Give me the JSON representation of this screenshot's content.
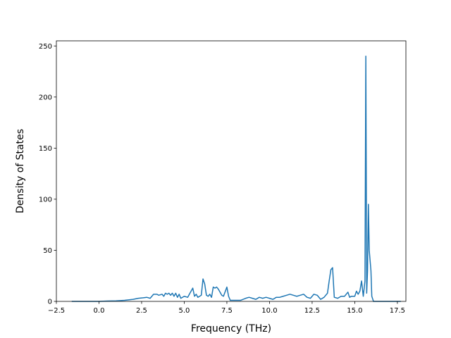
{
  "chart_data": {
    "type": "line",
    "title": "",
    "xlabel": "Frequency (THz)",
    "ylabel": "Density of States",
    "xlim": [
      -2.5,
      18.0
    ],
    "ylim": [
      0,
      255
    ],
    "grid": false,
    "legend": "none",
    "xticks": [
      "−2.5",
      "0.0",
      "2.5",
      "5.0",
      "7.5",
      "10.0",
      "12.5",
      "15.0",
      "17.5"
    ],
    "xtick_values": [
      -2.5,
      0.0,
      2.5,
      5.0,
      7.5,
      10.0,
      12.5,
      15.0,
      17.5
    ],
    "yticks": [
      "0",
      "50",
      "100",
      "150",
      "200",
      "250"
    ],
    "ytick_values": [
      0,
      50,
      100,
      150,
      200,
      250
    ],
    "series": [
      {
        "color": "#1f77b4",
        "x": [
          -1.6,
          -1.0,
          -0.5,
          0.0,
          0.5,
          1.0,
          1.5,
          2.0,
          2.3,
          2.6,
          2.8,
          3.0,
          3.2,
          3.4,
          3.5,
          3.7,
          3.8,
          3.9,
          4.0,
          4.1,
          4.2,
          4.3,
          4.4,
          4.5,
          4.6,
          4.7,
          4.8,
          5.0,
          5.2,
          5.4,
          5.5,
          5.6,
          5.7,
          5.8,
          5.9,
          6.0,
          6.1,
          6.2,
          6.3,
          6.4,
          6.5,
          6.6,
          6.7,
          6.8,
          6.9,
          7.0,
          7.2,
          7.3,
          7.5,
          7.6,
          7.7,
          7.8,
          8.0,
          8.3,
          8.6,
          8.8,
          9.0,
          9.2,
          9.4,
          9.6,
          9.8,
          10.0,
          10.2,
          10.4,
          10.6,
          10.8,
          11.0,
          11.2,
          11.4,
          11.6,
          11.8,
          12.0,
          12.2,
          12.4,
          12.6,
          12.8,
          13.0,
          13.2,
          13.4,
          13.5,
          13.6,
          13.7,
          13.8,
          14.0,
          14.2,
          14.4,
          14.6,
          14.7,
          14.8,
          15.0,
          15.1,
          15.2,
          15.3,
          15.4,
          15.5,
          15.6,
          15.65,
          15.7,
          15.75,
          15.8,
          15.85,
          15.9,
          15.95,
          16.0,
          16.1,
          16.2,
          16.3,
          17.0,
          17.7
        ],
        "y": [
          0,
          0,
          0,
          0,
          0.3,
          0.5,
          1,
          2,
          3,
          3.5,
          4,
          3,
          7,
          7,
          6,
          7,
          5,
          8,
          7,
          8,
          6,
          8,
          5,
          8,
          4,
          7,
          3,
          5,
          4,
          10,
          13,
          5,
          7,
          4,
          5,
          6,
          22,
          17,
          6,
          5,
          7,
          4,
          14,
          13,
          14,
          12,
          6,
          5,
          14,
          5,
          1,
          1,
          1,
          1,
          3,
          4,
          3,
          2,
          4,
          3,
          4,
          3,
          2,
          4,
          4,
          5,
          6,
          7,
          6,
          5,
          6,
          7,
          4,
          3,
          7,
          6,
          2,
          4,
          8,
          20,
          31,
          33,
          4,
          3,
          5,
          5,
          9,
          4,
          5,
          5,
          10,
          7,
          10,
          20,
          5,
          20,
          240,
          8,
          30,
          95,
          50,
          40,
          30,
          5,
          0,
          0,
          0,
          0,
          0
        ]
      }
    ]
  }
}
